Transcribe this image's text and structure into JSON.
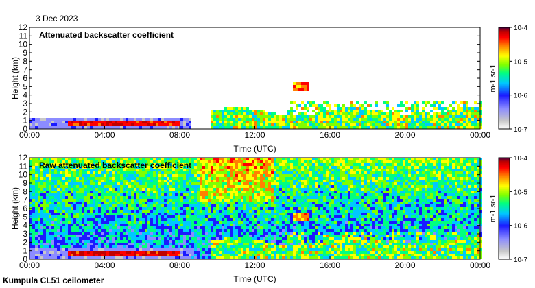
{
  "header": {
    "date": "3 Dec 2023"
  },
  "footer": {
    "instrument": "Kumpula CL51 ceilometer"
  },
  "colors": {
    "scale": [
      "#ffffff",
      "#c8c8c8",
      "#8c8cff",
      "#1a1aff",
      "#00c8ff",
      "#00ff80",
      "#80ff00",
      "#ffff00",
      "#ff8000",
      "#ff0000",
      "#c00000",
      "#400040"
    ]
  },
  "chart_data": [
    {
      "type": "heatmap",
      "title": "Attenuated backscatter coefficient",
      "xlabel": "Time (UTC)",
      "ylabel": "Height (km)",
      "x_ticks": [
        "00:00",
        "04:00",
        "08:00",
        "12:00",
        "16:00",
        "20:00",
        "00:00"
      ],
      "y_ticks": [
        "0",
        "1",
        "2",
        "3",
        "4",
        "5",
        "6",
        "7",
        "8",
        "9",
        "10",
        "11",
        "12"
      ],
      "xlim_hours": [
        0,
        24
      ],
      "ylim_km": [
        0,
        12
      ],
      "colorbar": {
        "label": "m-1 sr-1",
        "scale": "log",
        "range": [
          1e-07,
          0.0001
        ],
        "ticks": [
          "10-7",
          "10-6",
          "10-5",
          "10-4"
        ]
      },
      "features": [
        {
          "name": "strong layer",
          "x_hours": [
            2,
            7.9
          ],
          "y_km": [
            0.5,
            1.0
          ],
          "level": 0.95
        },
        {
          "name": "cloud",
          "x_hours": [
            14.0,
            14.8
          ],
          "y_km": [
            4.8,
            5.6
          ],
          "level": 0.8
        }
      ]
    },
    {
      "type": "heatmap",
      "title": "Raw attenuated backscatter coefficient",
      "xlabel": "Time (UTC)",
      "ylabel": "Height (km)",
      "x_ticks": [
        "00:00",
        "04:00",
        "08:00",
        "12:00",
        "16:00",
        "20:00",
        "00:00"
      ],
      "y_ticks": [
        "0",
        "1",
        "2",
        "3",
        "4",
        "5",
        "6",
        "7",
        "8",
        "9",
        "10",
        "11",
        "12"
      ],
      "xlim_hours": [
        0,
        24
      ],
      "ylim_km": [
        0,
        12
      ],
      "colorbar": {
        "label": "m-1 sr-1",
        "scale": "log",
        "range": [
          1e-07,
          0.0001
        ],
        "ticks": [
          "10-7",
          "10-6",
          "10-5",
          "10-4"
        ]
      },
      "features": [
        {
          "name": "strong layer",
          "x_hours": [
            2,
            7.9
          ],
          "y_km": [
            0.5,
            1.0
          ],
          "level": 0.95
        },
        {
          "name": "cloud",
          "x_hours": [
            14.0,
            14.8
          ],
          "y_km": [
            4.8,
            5.6
          ],
          "level": 0.8
        }
      ]
    }
  ]
}
